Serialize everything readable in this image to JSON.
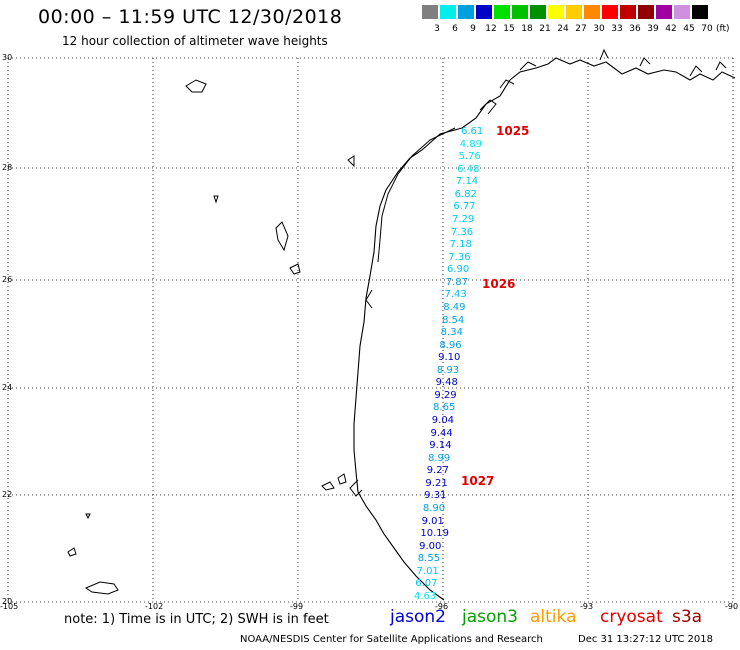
{
  "header": {
    "title": "00:00 – 11:59 UTC 12/30/2018",
    "subtitle": "12 hour collection of altimeter wave heights"
  },
  "color_scale": {
    "unit": "(ft)",
    "bins": [
      {
        "label": "3",
        "color": "#7f7f7f"
      },
      {
        "label": "6",
        "color": "#00eeee"
      },
      {
        "label": "9",
        "color": "#00a0e0"
      },
      {
        "label": "12",
        "color": "#0000c8"
      },
      {
        "label": "15",
        "color": "#00e000"
      },
      {
        "label": "18",
        "color": "#00c000"
      },
      {
        "label": "21",
        "color": "#009000"
      },
      {
        "label": "24",
        "color": "#ffff00"
      },
      {
        "label": "27",
        "color": "#ffcc00"
      },
      {
        "label": "30",
        "color": "#ff8800"
      },
      {
        "label": "33",
        "color": "#ff0000"
      },
      {
        "label": "36",
        "color": "#c00000"
      },
      {
        "label": "39",
        "color": "#900000"
      },
      {
        "label": "42",
        "color": "#a000a0"
      },
      {
        "label": "45",
        "color": "#d090e0"
      },
      {
        "label": "70",
        "color": "#000000"
      }
    ]
  },
  "map": {
    "lat_labels": [
      "30",
      "28",
      "26",
      "24",
      "22",
      "20"
    ],
    "lon_labels": [
      "-105",
      "-102",
      "-99",
      "-96",
      "-93",
      "-90"
    ],
    "passes": [
      "1025",
      "1026",
      "1027"
    ],
    "swh": [
      {
        "v": "6.61",
        "c": "#00c8f0"
      },
      {
        "v": "4.89",
        "c": "#00e8f0"
      },
      {
        "v": "5.76",
        "c": "#00e8f0"
      },
      {
        "v": "6.48",
        "c": "#00d8f0"
      },
      {
        "v": "7.14",
        "c": "#00c8f0"
      },
      {
        "v": "6.82",
        "c": "#00c8f0"
      },
      {
        "v": "6.77",
        "c": "#00c8f0"
      },
      {
        "v": "7.29",
        "c": "#00c8f0"
      },
      {
        "v": "7.36",
        "c": "#00c8f0"
      },
      {
        "v": "7.18",
        "c": "#00c8f0"
      },
      {
        "v": "7.36",
        "c": "#00c8f0"
      },
      {
        "v": "6.90",
        "c": "#00c8f0"
      },
      {
        "v": "7.87",
        "c": "#00a0e0"
      },
      {
        "v": "7.43",
        "c": "#00c0f0"
      },
      {
        "v": "8.49",
        "c": "#00a0e0"
      },
      {
        "v": "8.54",
        "c": "#00a0e0"
      },
      {
        "v": "8.34",
        "c": "#00a0e0"
      },
      {
        "v": "8.96",
        "c": "#00a0e0"
      },
      {
        "v": "9.10",
        "c": "#0000c8"
      },
      {
        "v": "8.93",
        "c": "#00a0e0"
      },
      {
        "v": "9.48",
        "c": "#0000c8"
      },
      {
        "v": "9.29",
        "c": "#0000c8"
      },
      {
        "v": "8.65",
        "c": "#00a0e0"
      },
      {
        "v": "9.04",
        "c": "#0000c8"
      },
      {
        "v": "9.44",
        "c": "#0000c8"
      },
      {
        "v": "9.14",
        "c": "#0000c8"
      },
      {
        "v": "8.99",
        "c": "#00a0e0"
      },
      {
        "v": "9.27",
        "c": "#0000c8"
      },
      {
        "v": "9.21",
        "c": "#0000c8"
      },
      {
        "v": "9.31",
        "c": "#0000c8"
      },
      {
        "v": "8.90",
        "c": "#00a0e0"
      },
      {
        "v": "9.01",
        "c": "#0000c8"
      },
      {
        "v": "10.19",
        "c": "#0000c8"
      },
      {
        "v": "9.00",
        "c": "#0000c8"
      },
      {
        "v": "8.55",
        "c": "#00a0e0"
      },
      {
        "v": "7.01",
        "c": "#00c8f0"
      },
      {
        "v": "6.07",
        "c": "#00c8f0"
      },
      {
        "v": "4.63",
        "c": "#00e8f0"
      }
    ]
  },
  "footer": {
    "note": "note:  1) Time is in UTC;  2) SWH is in feet",
    "satellites": [
      {
        "name": "jason2",
        "color": "#0000d0"
      },
      {
        "name": "jason3",
        "color": "#00a000"
      },
      {
        "name": "altika",
        "color": "#ff9900"
      },
      {
        "name": "cryosat",
        "color": "#e00000"
      },
      {
        "name": "s3a",
        "color": "#a00000"
      }
    ],
    "credit": "NOAA/NESDIS Center for Satellite Applications and Research",
    "timestamp": "Dec 31 13:27:12 UTC 2018"
  }
}
